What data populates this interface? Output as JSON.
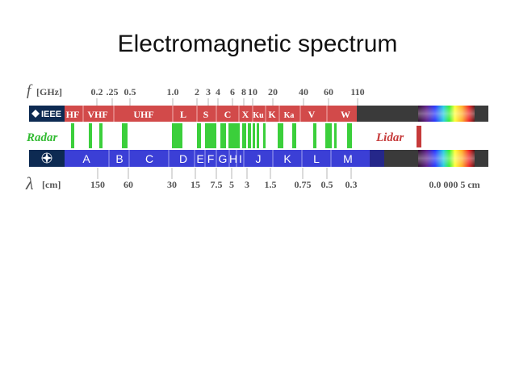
{
  "title": "Electromagnetic spectrum",
  "freq_axis": {
    "symbol": "f",
    "unit": "[GHz]",
    "ticks": [
      {
        "label": "0.2"
      },
      {
        "label": ".25"
      },
      {
        "label": "0.5"
      },
      {
        "label": "1.0"
      },
      {
        "label": "2"
      },
      {
        "label": "3"
      },
      {
        "label": "4"
      },
      {
        "label": "6"
      },
      {
        "label": "8"
      },
      {
        "label": "10"
      },
      {
        "label": "20"
      },
      {
        "label": "40"
      },
      {
        "label": "60"
      },
      {
        "label": "110"
      }
    ]
  },
  "ieee_row": {
    "logo_text": "IEEE",
    "bands": [
      {
        "label": "HF"
      },
      {
        "label": "VHF"
      },
      {
        "label": "UHF"
      },
      {
        "label": "L"
      },
      {
        "label": "S"
      },
      {
        "label": "C"
      },
      {
        "label": "X"
      },
      {
        "label": "Ku"
      },
      {
        "label": "K"
      },
      {
        "label": "Ka"
      },
      {
        "label": "V"
      },
      {
        "label": "W"
      }
    ]
  },
  "radar_row": {
    "label": "Radar",
    "lidar_label": "Lidar",
    "colors": {
      "radar_green": "#3bcf3b",
      "radar_label": "#33bb33",
      "lidar_red": "#c63a3a"
    }
  },
  "nato_row": {
    "logo": "nato-compass-icon",
    "bands": [
      {
        "label": "A"
      },
      {
        "label": "B"
      },
      {
        "label": "C"
      },
      {
        "label": "D"
      },
      {
        "label": "E"
      },
      {
        "label": "F"
      },
      {
        "label": "G"
      },
      {
        "label": "H"
      },
      {
        "label": "I"
      },
      {
        "label": "J"
      },
      {
        "label": "K"
      },
      {
        "label": "L"
      },
      {
        "label": "M"
      }
    ]
  },
  "wavelength_axis": {
    "symbol": "λ",
    "unit": "[cm]",
    "ticks": [
      {
        "label": "150"
      },
      {
        "label": "60"
      },
      {
        "label": "30"
      },
      {
        "label": "15"
      },
      {
        "label": "7.5"
      },
      {
        "label": "5"
      },
      {
        "label": "3"
      },
      {
        "label": "1.5"
      },
      {
        "label": "0.75"
      },
      {
        "label": "0.5"
      },
      {
        "label": "0.3"
      },
      {
        "label": "0.0 000 5 cm"
      }
    ]
  },
  "colors": {
    "ieee_red": "#d24a4a",
    "nato_blue": "#3b3fd6",
    "dark_bar": "#3a3a3a",
    "axis_text": "#555555"
  }
}
